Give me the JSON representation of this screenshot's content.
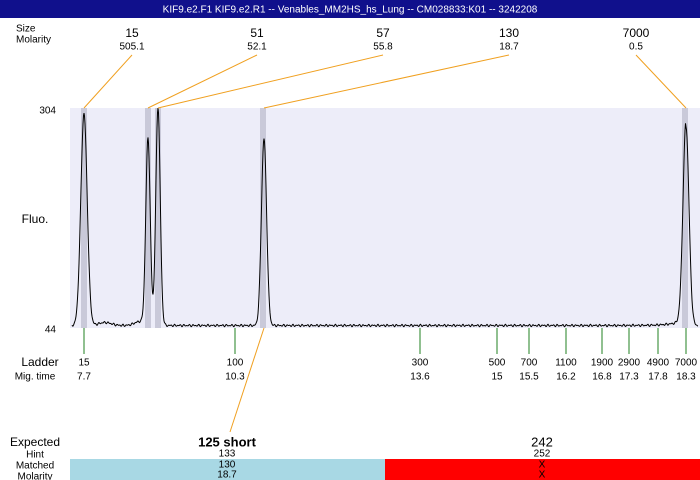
{
  "header": {
    "title": "KIF9.e2.F1  KIF9.e2.R1 -- Venables_MM2HS_hs_Lung -- CM028833:K01 -- 3242208"
  },
  "peak_header": {
    "size": "Size",
    "molarity": "Molarity"
  },
  "peaks": [
    {
      "size": "15",
      "molarity": "505.1"
    },
    {
      "size": "51",
      "molarity": "52.1"
    },
    {
      "size": "57",
      "molarity": "55.8"
    },
    {
      "size": "130",
      "molarity": "18.7"
    },
    {
      "size": "7000",
      "molarity": "0.5"
    }
  ],
  "y_axis": {
    "label": "Fluo.",
    "top": "304",
    "bottom": "44"
  },
  "ladder": {
    "label": "Ladder",
    "time_label": "Mig. time",
    "items": [
      {
        "size": "15",
        "time": "7.7"
      },
      {
        "size": "100",
        "time": "10.3"
      },
      {
        "size": "300",
        "time": "13.6"
      },
      {
        "size": "500",
        "time": "15"
      },
      {
        "size": "700",
        "time": "15.5"
      },
      {
        "size": "1100",
        "time": "16.2"
      },
      {
        "size": "1900",
        "time": "16.8"
      },
      {
        "size": "2900",
        "time": "17.3"
      },
      {
        "size": "4900",
        "time": "17.8"
      },
      {
        "size": "7000",
        "time": "18.3"
      }
    ]
  },
  "expected": {
    "label": "Expected",
    "row_labels": [
      "Hint",
      "Matched",
      "Molarity"
    ],
    "products": [
      {
        "title": "125 short",
        "hint": "133",
        "matched": "130",
        "molarity": "18.7"
      },
      {
        "title": "242",
        "hint": "252",
        "matched": "X",
        "molarity": "X"
      }
    ]
  }
}
